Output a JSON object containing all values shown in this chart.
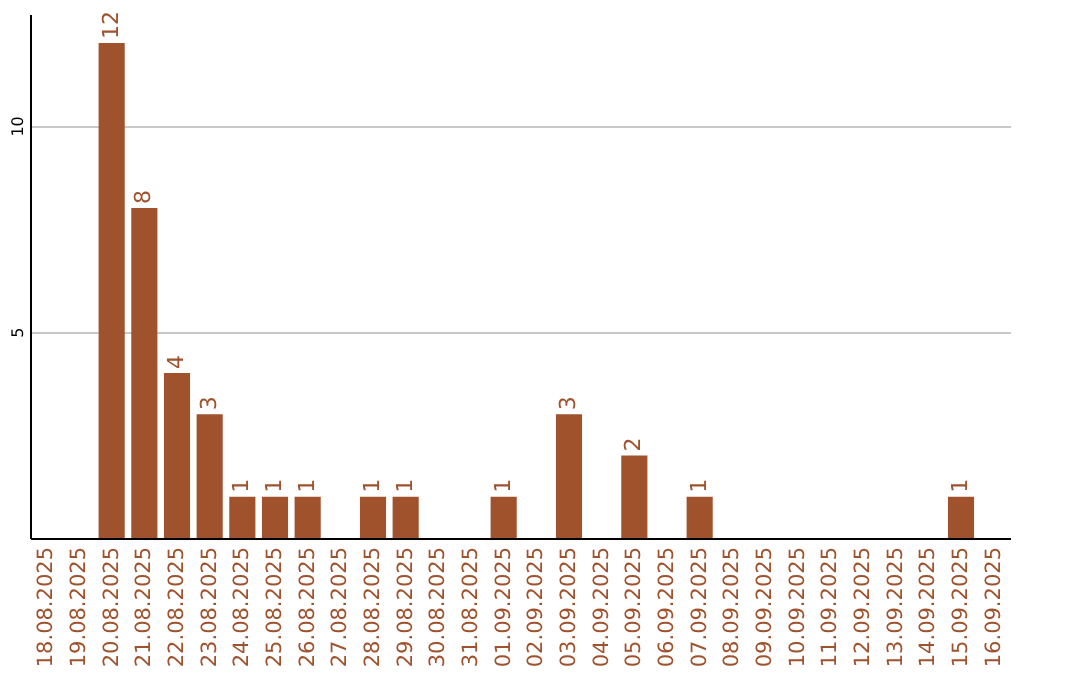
{
  "chart_data": {
    "type": "bar",
    "categories": [
      "18.08.2025",
      "19.08.2025",
      "20.08.2025",
      "21.08.2025",
      "22.08.2025",
      "23.08.2025",
      "24.08.2025",
      "25.08.2025",
      "26.08.2025",
      "27.08.2025",
      "28.08.2025",
      "29.08.2025",
      "30.08.2025",
      "31.08.2025",
      "01.09.2025",
      "02.09.2025",
      "03.09.2025",
      "04.09.2025",
      "05.09.2025",
      "06.09.2025",
      "07.09.2025",
      "08.09.2025",
      "09.09.2025",
      "10.09.2025",
      "11.09.2025",
      "12.09.2025",
      "13.09.2025",
      "14.09.2025",
      "15.09.2025",
      "16.09.2025"
    ],
    "values": [
      null,
      null,
      12,
      8,
      4,
      3,
      1,
      1,
      1,
      null,
      1,
      1,
      null,
      null,
      1,
      null,
      3,
      null,
      2,
      null,
      1,
      null,
      null,
      null,
      null,
      null,
      null,
      null,
      1,
      null
    ],
    "color": "#a0522d",
    "ylim": [
      0,
      12.7
    ],
    "yticks": [
      5,
      10
    ],
    "grid": "y",
    "data_labels": true
  }
}
